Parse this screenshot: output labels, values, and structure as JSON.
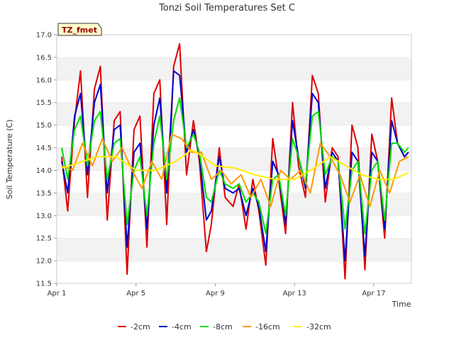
{
  "chart_data": {
    "type": "line",
    "title": "Tonzi Soil Temperatures Set C",
    "xlabel": "Time",
    "ylabel": "Soil Temperature (C)",
    "site_tag": "TZ_fmet",
    "xlim": [
      0,
      17.9
    ],
    "ylim": [
      11.5,
      17.0
    ],
    "grid": "horizontal bands",
    "legend_position": "bottom",
    "x_ticks": [
      {
        "x": 0,
        "label": "Apr 1"
      },
      {
        "x": 4,
        "label": "Apr 5"
      },
      {
        "x": 8,
        "label": "Apr 9"
      },
      {
        "x": 12,
        "label": "Apr 13"
      },
      {
        "x": 16,
        "label": "Apr 17"
      }
    ],
    "y_ticks": [
      11.5,
      12.0,
      12.5,
      13.0,
      13.5,
      14.0,
      14.5,
      15.0,
      15.5,
      16.0,
      16.5,
      17.0
    ],
    "series": [
      {
        "name": "-2cm",
        "color": "#dd0000",
        "x": [
          0.25,
          0.55,
          0.9,
          1.2,
          1.55,
          1.9,
          2.2,
          2.55,
          2.9,
          3.2,
          3.55,
          3.9,
          4.2,
          4.55,
          4.9,
          5.2,
          5.55,
          5.9,
          6.2,
          6.55,
          6.9,
          7.2,
          7.55,
          7.8,
          8.2,
          8.5,
          8.9,
          9.2,
          9.55,
          9.9,
          10.2,
          10.55,
          10.9,
          11.2,
          11.55,
          11.9,
          12.2,
          12.55,
          12.9,
          13.2,
          13.55,
          13.9,
          14.2,
          14.55,
          14.9,
          15.2,
          15.55,
          15.9,
          16.2,
          16.55,
          16.9,
          17.2,
          17.55,
          17.75
        ],
        "y": [
          14.3,
          13.1,
          15.1,
          16.2,
          13.4,
          15.8,
          16.3,
          12.9,
          15.1,
          15.3,
          11.7,
          14.9,
          15.2,
          12.3,
          15.7,
          16.0,
          12.8,
          16.3,
          16.8,
          13.9,
          15.1,
          14.2,
          12.2,
          12.8,
          14.5,
          13.4,
          13.2,
          13.7,
          12.7,
          13.8,
          13.1,
          11.9,
          14.7,
          13.8,
          12.6,
          15.5,
          14.1,
          13.4,
          16.1,
          15.7,
          13.3,
          14.5,
          14.3,
          11.6,
          15.0,
          14.5,
          11.8,
          14.8,
          14.2,
          12.5,
          15.6,
          14.6,
          14.3,
          14.4
        ]
      },
      {
        "name": "-4cm",
        "color": "#0000cc",
        "x": [
          0.25,
          0.55,
          0.9,
          1.2,
          1.55,
          1.9,
          2.2,
          2.55,
          2.9,
          3.2,
          3.55,
          3.9,
          4.2,
          4.55,
          4.9,
          5.2,
          5.55,
          5.9,
          6.2,
          6.55,
          6.9,
          7.2,
          7.55,
          7.8,
          8.2,
          8.5,
          8.9,
          9.2,
          9.55,
          9.9,
          10.2,
          10.55,
          10.9,
          11.2,
          11.55,
          11.9,
          12.2,
          12.55,
          12.9,
          13.2,
          13.55,
          13.9,
          14.2,
          14.55,
          14.9,
          15.2,
          15.55,
          15.9,
          16.2,
          16.55,
          16.9,
          17.2,
          17.55,
          17.75
        ],
        "y": [
          14.2,
          13.5,
          15.2,
          15.7,
          13.9,
          15.5,
          15.9,
          13.5,
          14.9,
          15.0,
          12.3,
          14.4,
          14.6,
          12.7,
          15.0,
          15.6,
          13.5,
          16.2,
          16.1,
          14.4,
          14.9,
          14.3,
          12.9,
          13.1,
          14.3,
          13.6,
          13.5,
          13.6,
          13.0,
          13.6,
          13.2,
          12.2,
          14.2,
          13.9,
          12.8,
          15.1,
          14.3,
          13.6,
          15.7,
          15.5,
          13.6,
          14.4,
          14.2,
          12.0,
          14.4,
          14.2,
          12.1,
          14.4,
          14.2,
          12.7,
          15.1,
          14.6,
          14.3,
          14.4
        ]
      },
      {
        "name": "-8cm",
        "color": "#00dd00",
        "x": [
          0.25,
          0.55,
          0.9,
          1.2,
          1.55,
          1.9,
          2.2,
          2.55,
          2.9,
          3.2,
          3.55,
          3.9,
          4.2,
          4.55,
          4.9,
          5.2,
          5.55,
          5.9,
          6.2,
          6.55,
          6.9,
          7.2,
          7.55,
          7.8,
          8.2,
          8.5,
          8.9,
          9.2,
          9.55,
          9.9,
          10.2,
          10.55,
          10.9,
          11.2,
          11.55,
          11.9,
          12.2,
          12.55,
          12.9,
          13.2,
          13.55,
          13.9,
          14.2,
          14.55,
          14.9,
          15.2,
          15.55,
          15.9,
          16.2,
          16.55,
          16.9,
          17.2,
          17.55,
          17.75
        ],
        "y": [
          14.5,
          13.8,
          14.9,
          15.2,
          14.1,
          15.1,
          15.3,
          13.8,
          14.6,
          14.7,
          12.8,
          14.0,
          14.3,
          13.0,
          14.6,
          15.2,
          13.8,
          15.1,
          15.6,
          14.5,
          14.8,
          14.4,
          13.4,
          13.3,
          14.0,
          13.7,
          13.6,
          13.7,
          13.3,
          13.5,
          13.3,
          12.6,
          13.8,
          13.9,
          13.0,
          14.7,
          14.3,
          13.7,
          15.2,
          15.3,
          13.9,
          14.3,
          14.2,
          12.7,
          14.0,
          14.2,
          12.6,
          14.0,
          14.2,
          12.9,
          14.6,
          14.6,
          14.4,
          14.5
        ]
      },
      {
        "name": "-16cm",
        "color": "#ff9900",
        "x": [
          0.25,
          0.8,
          1.3,
          1.8,
          2.3,
          2.8,
          3.3,
          3.8,
          4.3,
          4.8,
          5.3,
          5.8,
          6.3,
          6.8,
          7.3,
          7.8,
          8.3,
          8.8,
          9.3,
          9.8,
          10.3,
          10.8,
          11.3,
          11.8,
          12.3,
          12.8,
          13.3,
          13.8,
          14.3,
          14.8,
          15.3,
          15.8,
          16.3,
          16.8,
          17.3,
          17.75
        ],
        "y": [
          14.1,
          14.0,
          14.6,
          14.1,
          14.7,
          14.2,
          14.5,
          14.0,
          13.6,
          14.2,
          13.8,
          14.8,
          14.7,
          14.4,
          14.4,
          13.8,
          14.0,
          13.7,
          13.9,
          13.4,
          13.8,
          13.2,
          14.0,
          13.8,
          14.0,
          13.5,
          14.6,
          14.3,
          13.9,
          13.3,
          13.9,
          13.2,
          14.0,
          13.5,
          14.2,
          14.3
        ]
      },
      {
        "name": "-32cm",
        "color": "#ffee00",
        "x": [
          0.25,
          1,
          2,
          3,
          4,
          5,
          6,
          6.8,
          7.4,
          8,
          9,
          10,
          11,
          12,
          13,
          13.8,
          14.6,
          15.4,
          16.2,
          17,
          17.75
        ],
        "y": [
          14.05,
          14.15,
          14.3,
          14.3,
          14.0,
          14.0,
          14.2,
          14.45,
          14.3,
          14.1,
          14.05,
          13.9,
          13.8,
          13.8,
          14.05,
          14.3,
          14.1,
          13.9,
          13.8,
          13.8,
          13.95
        ]
      }
    ]
  }
}
